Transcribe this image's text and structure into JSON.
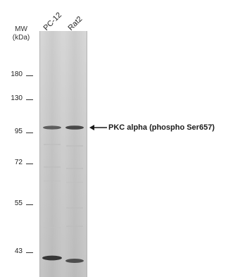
{
  "mw_label_line1": "MW",
  "mw_label_line2": "(kDa)",
  "lanes": [
    "PC-12",
    "Rat2"
  ],
  "markers": [
    {
      "label": "180",
      "kda": 180
    },
    {
      "label": "130",
      "kda": 130
    },
    {
      "label": "95",
      "kda": 95
    },
    {
      "label": "72",
      "kda": 72
    },
    {
      "label": "55",
      "kda": 55
    },
    {
      "label": "43",
      "kda": 43
    }
  ],
  "band_label": "PKC alpha (phospho Ser657)",
  "colors": {
    "membrane": "#cfcfcf",
    "band": "#3a3a3a"
  }
}
